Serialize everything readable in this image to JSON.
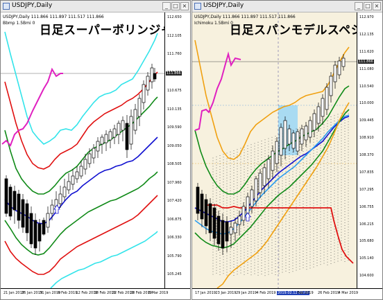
{
  "colors": {
    "window_bg": "#ffffff",
    "right_plot_bg": "#f7f1de",
    "candle_body": "#000000",
    "upper_band_3": "#33e4ea",
    "upper_band_2": "#e01010",
    "upper_band_1": "#108a18",
    "mid_band": "#1010d0",
    "chikou": "#e020c0",
    "kumo_highlight": "#a9dbf2",
    "right_kumo_dots": "#333333",
    "orange_band": "#f0a010",
    "blue_light_band": "#2a9cf0"
  },
  "left": {
    "window_title": "USDJPY,Daily",
    "indicator_line": "USDJPY,Daily  111.866 111.897 111.517 111.866",
    "indicator_line2": "Bbmp 1.5Bmi 0",
    "big_title": "日足スーパーボリンジャー",
    "y_labels": [
      "112.650",
      "112.105",
      "111.760",
      "111.220",
      "110.675",
      "110.135",
      "109.590",
      "109.050",
      "108.505",
      "107.960",
      "107.420",
      "106.875",
      "106.330",
      "105.790",
      "105.245"
    ],
    "current_price": "111.866",
    "x_labels": [
      "21 Jan 2019",
      "25 Jan 2019",
      "31 Jan 2019",
      "6 Feb 2019",
      "12 Feb 2019",
      "18 Feb 2019",
      "22 Feb 2019",
      "28 Feb 2019",
      "6 Mar 2019"
    ],
    "icons": [
      "window-icon",
      "minimize-icon",
      "maximize-icon",
      "close-icon",
      "up-arrow-icon"
    ]
  },
  "right": {
    "window_title": "USDJPY,Daily",
    "indicator_line": "USDJPY,Daily  111.866 111.897 111.517 111.866",
    "indicator_line2": "Ichimoku 1.5Bmi 0",
    "big_title": "日足スパンモデルスペシャル",
    "y_labels": [
      "112.970",
      "112.135",
      "111.620",
      "111.080",
      "110.540",
      "110.000",
      "109.445",
      "108.910",
      "108.370",
      "107.835",
      "107.295",
      "106.755",
      "106.215",
      "105.680",
      "105.140",
      "104.600"
    ],
    "current_price": "111.866",
    "x_labels": [
      "17 Jan 2019",
      "23 Jan 2019",
      "29 Jan 2019",
      "4 Feb 2019",
      "2019.02.12 00:00",
      "Feb 2019",
      "26 Feb 2019",
      "4 Mar 2019"
    ],
    "highlighted_x_label": "2019.02.12 00:00",
    "icons": [
      "window-icon",
      "minimize-icon",
      "maximize-icon",
      "close-icon",
      "up-arrow-icon"
    ]
  },
  "window_buttons": {
    "minimize": "_",
    "maximize": "□",
    "close": "×"
  }
}
